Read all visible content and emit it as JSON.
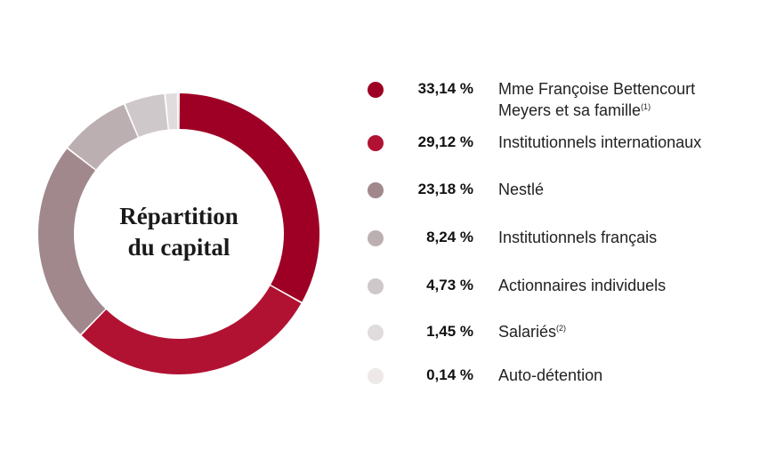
{
  "chart_data": {
    "type": "pie",
    "title": "Répartition du capital",
    "title_lines": [
      "Répartition",
      "du capital"
    ],
    "categories": [
      "Mme Françoise Bettencourt Meyers et sa famille",
      "Institutionnels internationaux",
      "Nestlé",
      "Institutionnels français",
      "Actionnaires individuels",
      "Salariés",
      "Auto-détention"
    ],
    "values": [
      33.14,
      29.12,
      23.18,
      8.24,
      4.73,
      1.45,
      0.14
    ],
    "legend_position": "right"
  },
  "legend": [
    {
      "pct": "33,14 %",
      "label_lines": [
        "Mme Françoise Bettencourt",
        "Meyers et sa famille"
      ],
      "note": "(1)",
      "color": "#9d0024"
    },
    {
      "pct": "29,12 %",
      "label_lines": [
        "Institutionnels internationaux"
      ],
      "note": "",
      "color": "#b11232"
    },
    {
      "pct": "23,18 %",
      "label_lines": [
        "Nestlé"
      ],
      "note": "",
      "color": "#a0888d"
    },
    {
      "pct": "8,24 %",
      "label_lines": [
        "Institutionnels français"
      ],
      "note": "",
      "color": "#bcafb2"
    },
    {
      "pct": "4,73 %",
      "label_lines": [
        "Actionnaires individuels"
      ],
      "note": "",
      "color": "#cfc8ca"
    },
    {
      "pct": "1,45 %",
      "label_lines": [
        "Salariés"
      ],
      "note": "(2)",
      "color": "#e0dcdd"
    },
    {
      "pct": "0,14 %",
      "label_lines": [
        "Auto-détention"
      ],
      "note": "",
      "color": "#efe8e9"
    }
  ]
}
